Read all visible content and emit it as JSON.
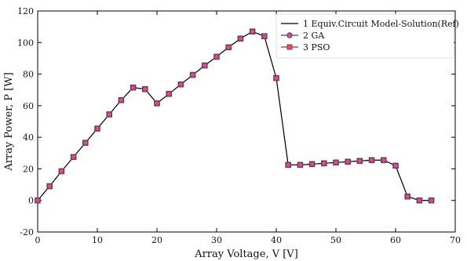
{
  "chart_data": {
    "type": "line",
    "xlabel": "Array Voltage, V [V]",
    "ylabel": "Array Power, P [W]",
    "xlim": [
      0,
      70
    ],
    "ylim": [
      -20,
      120
    ],
    "xticks": [
      0,
      10,
      20,
      30,
      40,
      50,
      60,
      70
    ],
    "yticks": [
      -20,
      0,
      20,
      40,
      60,
      80,
      100,
      120
    ],
    "x": [
      0,
      2,
      4,
      6,
      8,
      10,
      12,
      14,
      16,
      18,
      20,
      22,
      24,
      26,
      28,
      30,
      32,
      34,
      36,
      38,
      40,
      42,
      44,
      46,
      48,
      50,
      52,
      54,
      56,
      58,
      60,
      62,
      64,
      66
    ],
    "series": [
      {
        "name": "1 Equiv.Circuit Model-Solution(Ref)",
        "color": "#000000",
        "marker": "none",
        "values": [
          0,
          9,
          18.5,
          27.5,
          36.5,
          45.5,
          54.5,
          63.5,
          71.5,
          70.5,
          61.5,
          67.5,
          73.5,
          79.5,
          85.5,
          91,
          97,
          102.5,
          107,
          104,
          77.5,
          22.5,
          22.5,
          23,
          23.5,
          24,
          24.5,
          25,
          25.5,
          25.5,
          22,
          2.5,
          0,
          0
        ]
      },
      {
        "name": "2 GA",
        "color": "#3b3f9e",
        "marker": "circle",
        "values": [
          0,
          9,
          18.5,
          27.5,
          36.5,
          45.5,
          54.5,
          63.5,
          71.5,
          70.5,
          61.5,
          67.5,
          73.5,
          79.5,
          85.5,
          91,
          97,
          102.5,
          107,
          104,
          77.5,
          22.5,
          22.5,
          23,
          23.5,
          24,
          24.5,
          25,
          25.5,
          25.5,
          22,
          2.5,
          0,
          0
        ]
      },
      {
        "name": "3 PSO",
        "color": "#a0322f",
        "marker": "square",
        "values": [
          0,
          9,
          18.5,
          27.5,
          36.5,
          45.5,
          54.5,
          63.5,
          71.5,
          70.5,
          61.5,
          67.5,
          73.5,
          79.5,
          85.5,
          91,
          97,
          102.5,
          107,
          104,
          77.5,
          22.5,
          22.5,
          23,
          23.5,
          24,
          24.5,
          25,
          25.5,
          25.5,
          22,
          2.5,
          0,
          0
        ]
      }
    ],
    "marker_fill": "#e0506a",
    "grid": false,
    "legend_position": "top-right"
  }
}
